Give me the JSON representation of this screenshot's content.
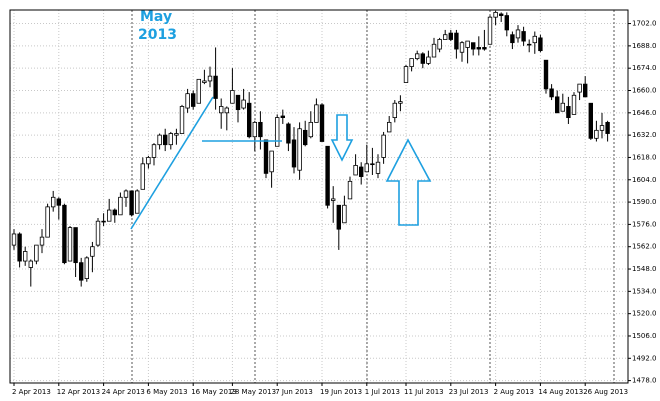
{
  "chart_data": {
    "type": "candlestick",
    "annotations": [
      "May",
      "2013"
    ],
    "categories": [
      "2 Apr 2013",
      null,
      null,
      null,
      null,
      null,
      null,
      null,
      "12 Apr 2013",
      null,
      null,
      null,
      null,
      null,
      null,
      null,
      "24 Apr 2013",
      null,
      null,
      null,
      null,
      null,
      null,
      null,
      "6 May 2013",
      null,
      null,
      null,
      null,
      null,
      null,
      null,
      "16 May 2013",
      null,
      null,
      null,
      null,
      null,
      null,
      "28 May 2013",
      null,
      null,
      null,
      null,
      null,
      null,
      null,
      "7 Jun 2013",
      null,
      null,
      null,
      null,
      null,
      null,
      null,
      "19 Jun 2013",
      null,
      null,
      null,
      null,
      null,
      null,
      null,
      "1 Jul 2013",
      null,
      null,
      null,
      null,
      null,
      null,
      "11 Jul 2013",
      null,
      null,
      null,
      null,
      null,
      null,
      null,
      "23 Jul 2013",
      null,
      null,
      null,
      null,
      null,
      null,
      null,
      "2 Aug 2013",
      null,
      null,
      null,
      null,
      null,
      null,
      null,
      "14 Aug 2013",
      null,
      null,
      null,
      null,
      null,
      null,
      null,
      "26 Aug 2013",
      null,
      null,
      null,
      null
    ],
    "ohlc": [
      [
        1563,
        1573,
        1560,
        1570
      ],
      [
        1570,
        1571,
        1549,
        1553
      ],
      [
        1553,
        1562,
        1550,
        1559
      ],
      [
        1549,
        1554,
        1537,
        1553
      ],
      [
        1553,
        1563,
        1551,
        1563
      ],
      [
        1563,
        1573,
        1558,
        1568
      ],
      [
        1568,
        1589,
        1568,
        1587
      ],
      [
        1587,
        1597,
        1584,
        1593
      ],
      [
        1592,
        1593,
        1579,
        1588
      ],
      [
        1588,
        1589,
        1551,
        1552
      ],
      [
        1553,
        1575,
        1553,
        1574
      ],
      [
        1574,
        1574,
        1543,
        1552
      ],
      [
        1552,
        1555,
        1537,
        1541
      ],
      [
        1542,
        1556,
        1540,
        1555
      ],
      [
        1556,
        1565,
        1546,
        1562
      ],
      [
        1563,
        1580,
        1562,
        1578
      ],
      [
        1578,
        1583,
        1575,
        1578
      ],
      [
        1578,
        1592,
        1578,
        1585
      ],
      [
        1585,
        1586,
        1577,
        1582
      ],
      [
        1582,
        1596,
        1582,
        1593
      ],
      [
        1593,
        1598,
        1587,
        1597
      ],
      [
        1597,
        1597,
        1581,
        1582
      ],
      [
        1583,
        1598,
        1583,
        1597
      ],
      [
        1598,
        1618,
        1598,
        1614
      ],
      [
        1614,
        1619,
        1611,
        1618
      ],
      [
        1618,
        1627,
        1613,
        1626
      ],
      [
        1626,
        1633,
        1623,
        1632
      ],
      [
        1632,
        1636,
        1622,
        1626
      ],
      [
        1626,
        1634,
        1623,
        1633
      ],
      [
        1632,
        1636,
        1626,
        1633
      ],
      [
        1633,
        1651,
        1633,
        1650
      ],
      [
        1649,
        1661,
        1646,
        1658
      ],
      [
        1658,
        1660,
        1648,
        1650
      ],
      [
        1652,
        1667,
        1652,
        1667
      ],
      [
        1665,
        1673,
        1664,
        1666
      ],
      [
        1666,
        1675,
        1662,
        1669
      ],
      [
        1669,
        1687,
        1648,
        1655
      ],
      [
        1646,
        1655,
        1636,
        1650
      ],
      [
        1646,
        1650,
        1635,
        1649
      ],
      [
        1652,
        1674,
        1652,
        1660
      ],
      [
        1657,
        1657,
        1640,
        1648
      ],
      [
        1649,
        1661,
        1648,
        1654
      ],
      [
        1652,
        1659,
        1630,
        1631
      ],
      [
        1631,
        1641,
        1622,
        1640
      ],
      [
        1640,
        1647,
        1623,
        1631
      ],
      [
        1629,
        1629,
        1605,
        1608
      ],
      [
        1609,
        1622,
        1599,
        1622
      ],
      [
        1625,
        1645,
        1625,
        1643
      ],
      [
        1644,
        1648,
        1639,
        1643
      ],
      [
        1639,
        1640,
        1622,
        1627
      ],
      [
        1629,
        1637,
        1608,
        1612
      ],
      [
        1610,
        1640,
        1604,
        1636
      ],
      [
        1635,
        1641,
        1625,
        1626
      ],
      [
        1631,
        1647,
        1630,
        1640
      ],
      [
        1640,
        1655,
        1640,
        1651
      ],
      [
        1651,
        1652,
        1628,
        1628
      ],
      [
        1625,
        1625,
        1586,
        1588
      ],
      [
        1591,
        1600,
        1577,
        1592
      ],
      [
        1588,
        1588,
        1560,
        1573
      ],
      [
        1577,
        1594,
        1577,
        1588
      ],
      [
        1592,
        1606,
        1592,
        1603
      ],
      [
        1607,
        1620,
        1607,
        1613
      ],
      [
        1612,
        1615,
        1601,
        1606
      ],
      [
        1609,
        1626,
        1609,
        1614
      ],
      [
        1614,
        1624,
        1607,
        1614
      ],
      [
        1608,
        1620,
        1605,
        1615
      ],
      [
        1618,
        1634,
        1614,
        1632
      ],
      [
        1634,
        1644,
        1634,
        1640
      ],
      [
        1643,
        1654,
        1640,
        1652
      ],
      [
        1652,
        1657,
        1647,
        1653
      ],
      [
        1665,
        1676,
        1665,
        1675
      ],
      [
        1675,
        1680,
        1672,
        1680
      ],
      [
        1680,
        1685,
        1679,
        1683
      ],
      [
        1683,
        1684,
        1674,
        1677
      ],
      [
        1677,
        1685,
        1676,
        1681
      ],
      [
        1681,
        1693,
        1681,
        1689
      ],
      [
        1686,
        1693,
        1684,
        1692
      ],
      [
        1692,
        1698,
        1692,
        1695
      ],
      [
        1696,
        1698,
        1691,
        1692
      ],
      [
        1696,
        1698,
        1680,
        1686
      ],
      [
        1684,
        1691,
        1678,
        1690
      ],
      [
        1687,
        1691,
        1677,
        1691
      ],
      [
        1690,
        1690,
        1682,
        1686
      ],
      [
        1687,
        1694,
        1682,
        1686
      ],
      [
        1687,
        1698,
        1685,
        1686
      ],
      [
        1689,
        1707,
        1689,
        1706
      ],
      [
        1706,
        1710,
        1701,
        1709
      ],
      [
        1708,
        1709,
        1703,
        1707
      ],
      [
        1707,
        1709,
        1694,
        1698
      ],
      [
        1695,
        1697,
        1686,
        1690
      ],
      [
        1693,
        1701,
        1690,
        1698
      ],
      [
        1697,
        1700,
        1688,
        1691
      ],
      [
        1689,
        1692,
        1684,
        1689
      ],
      [
        1690,
        1697,
        1683,
        1694
      ],
      [
        1693,
        1695,
        1684,
        1685
      ],
      [
        1679,
        1679,
        1658,
        1661
      ],
      [
        1661,
        1664,
        1654,
        1656
      ],
      [
        1656,
        1660,
        1646,
        1646
      ],
      [
        1647,
        1658,
        1647,
        1652
      ],
      [
        1650,
        1656,
        1639,
        1643
      ],
      [
        1645,
        1659,
        1645,
        1657
      ],
      [
        1659,
        1664,
        1654,
        1664
      ],
      [
        1664,
        1669,
        1656,
        1656
      ],
      [
        1652,
        1652,
        1629,
        1630
      ],
      [
        1630,
        1641,
        1628,
        1635
      ],
      [
        1635,
        1646,
        1630,
        1638
      ],
      [
        1640,
        1641,
        1628,
        1633
      ]
    ],
    "up_color": "#ffffff",
    "down_color": "#000000",
    "ylim": [
      1476.5,
      1710.5
    ],
    "yticks": [
      {
        "value": 1702,
        "label": "1702.0"
      },
      {
        "value": 1688,
        "label": "1688.0"
      },
      {
        "value": 1674,
        "label": "1674.0"
      },
      {
        "value": 1660,
        "label": "1660.0"
      },
      {
        "value": 1646,
        "label": "1646.0"
      },
      {
        "value": 1632,
        "label": "1632.0"
      },
      {
        "value": 1618,
        "label": "1618.0"
      },
      {
        "value": 1604,
        "label": "1604.0"
      },
      {
        "value": 1590,
        "label": "1590.0"
      },
      {
        "value": 1576,
        "label": "1576.0"
      },
      {
        "value": 1562,
        "label": "1562.0"
      },
      {
        "value": 1548,
        "label": "1548.0"
      },
      {
        "value": 1534,
        "label": "1534.0"
      },
      {
        "value": 1520,
        "label": "1520.0"
      },
      {
        "value": 1506,
        "label": "1506.0"
      },
      {
        "value": 1492,
        "label": "1492.0"
      },
      {
        "value": 1478,
        "label": "1478.0"
      }
    ],
    "grid": true
  }
}
